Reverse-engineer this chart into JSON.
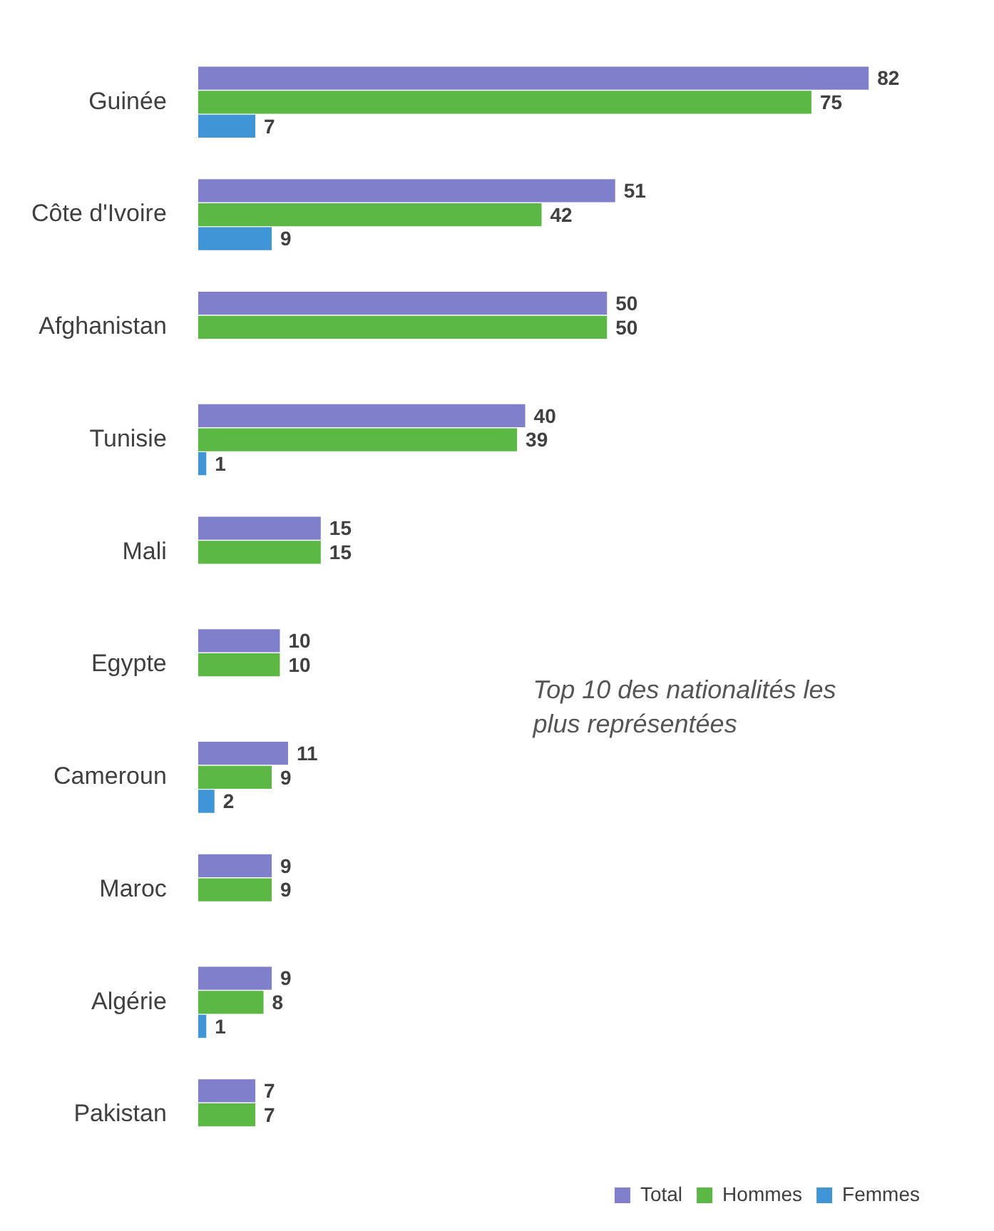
{
  "chart_data": {
    "type": "bar",
    "orientation": "horizontal",
    "title": "Top 10 des nationalités les plus représentées",
    "categories": [
      "Guinée",
      "Côte d'Ivoire",
      "Afghanistan",
      "Tunisie",
      "Mali",
      "Egypte",
      "Cameroun",
      "Maroc",
      "Algérie",
      "Pakistan"
    ],
    "series": [
      {
        "name": "Total",
        "color": "#7f7fcc",
        "values": [
          82,
          51,
          50,
          40,
          15,
          10,
          11,
          9,
          9,
          7
        ]
      },
      {
        "name": "Hommes",
        "color": "#5cb845",
        "values": [
          75,
          42,
          50,
          39,
          15,
          10,
          9,
          9,
          8,
          7
        ]
      },
      {
        "name": "Femmes",
        "color": "#3f95d6",
        "values": [
          7,
          9,
          null,
          1,
          null,
          null,
          2,
          null,
          1,
          null
        ]
      }
    ],
    "data_labels": true,
    "legend": "bottom right",
    "tick_labels": "y",
    "grid": false
  }
}
